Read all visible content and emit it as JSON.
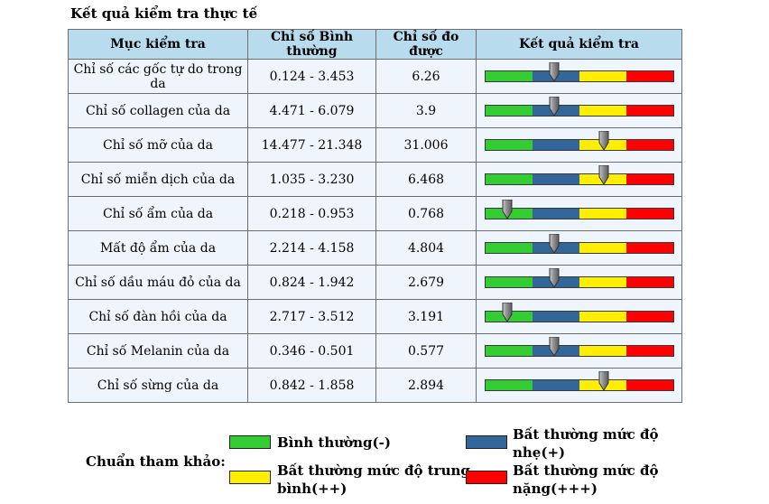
{
  "title": "Kết quả kiểm tra thực tế",
  "table": {
    "headers": [
      "Mục kiểm tra",
      "Chỉ số Bình thường",
      "Chỉ số đo được",
      "Kết quả kiểm tra"
    ],
    "rows": [
      {
        "name": "Chỉ số các gốc tự do trong da",
        "normal": "0.124 - 3.453",
        "measured": "6.26",
        "level": 0.37
      },
      {
        "name": "Chỉ số collagen của da",
        "normal": "4.471 - 6.079",
        "measured": "3.9",
        "level": 0.37
      },
      {
        "name": "Chỉ số mỡ của da",
        "normal": "14.477 - 21.348",
        "measured": "31.006",
        "level": 0.63
      },
      {
        "name": "Chỉ số miễn dịch của da",
        "normal": "1.035 - 3.230",
        "measured": "6.468",
        "level": 0.63
      },
      {
        "name": "Chỉ số ẩm của da",
        "normal": "0.218 - 0.953",
        "measured": "0.768",
        "level": 0.12
      },
      {
        "name": "Mất độ ẩm của da",
        "normal": "2.214 - 4.158",
        "measured": "4.804",
        "level": 0.37
      },
      {
        "name": "Chỉ số dầu máu đỏ của da",
        "normal": "0.824 - 1.942",
        "measured": "2.679",
        "level": 0.37
      },
      {
        "name": "Chỉ số đàn hồi của da",
        "normal": "2.717 - 3.512",
        "measured": "3.191",
        "level": 0.12
      },
      {
        "name": "Chỉ số Melanin của da",
        "normal": "0.346 - 0.501",
        "measured": "0.577",
        "level": 0.37
      },
      {
        "name": "Chỉ số sừng của da",
        "normal": "0.842 - 1.858",
        "measured": "2.894",
        "level": 0.63
      }
    ]
  },
  "legend": {
    "label": "Chuẩn tham khảo:",
    "items": [
      {
        "color": "#33cc33",
        "line1": "Bình thường(-)",
        "line2": ""
      },
      {
        "color": "#336699",
        "line1": "Bất thường mức độ",
        "line2": "nhẹ(+)"
      },
      {
        "color": "#ffee00",
        "line1": "Bất thường mức độ trung",
        "line2": "bình(++)"
      },
      {
        "color": "#ff0000",
        "line1": "Bất thường mức độ",
        "line2": "nặng(+++)"
      }
    ]
  }
}
